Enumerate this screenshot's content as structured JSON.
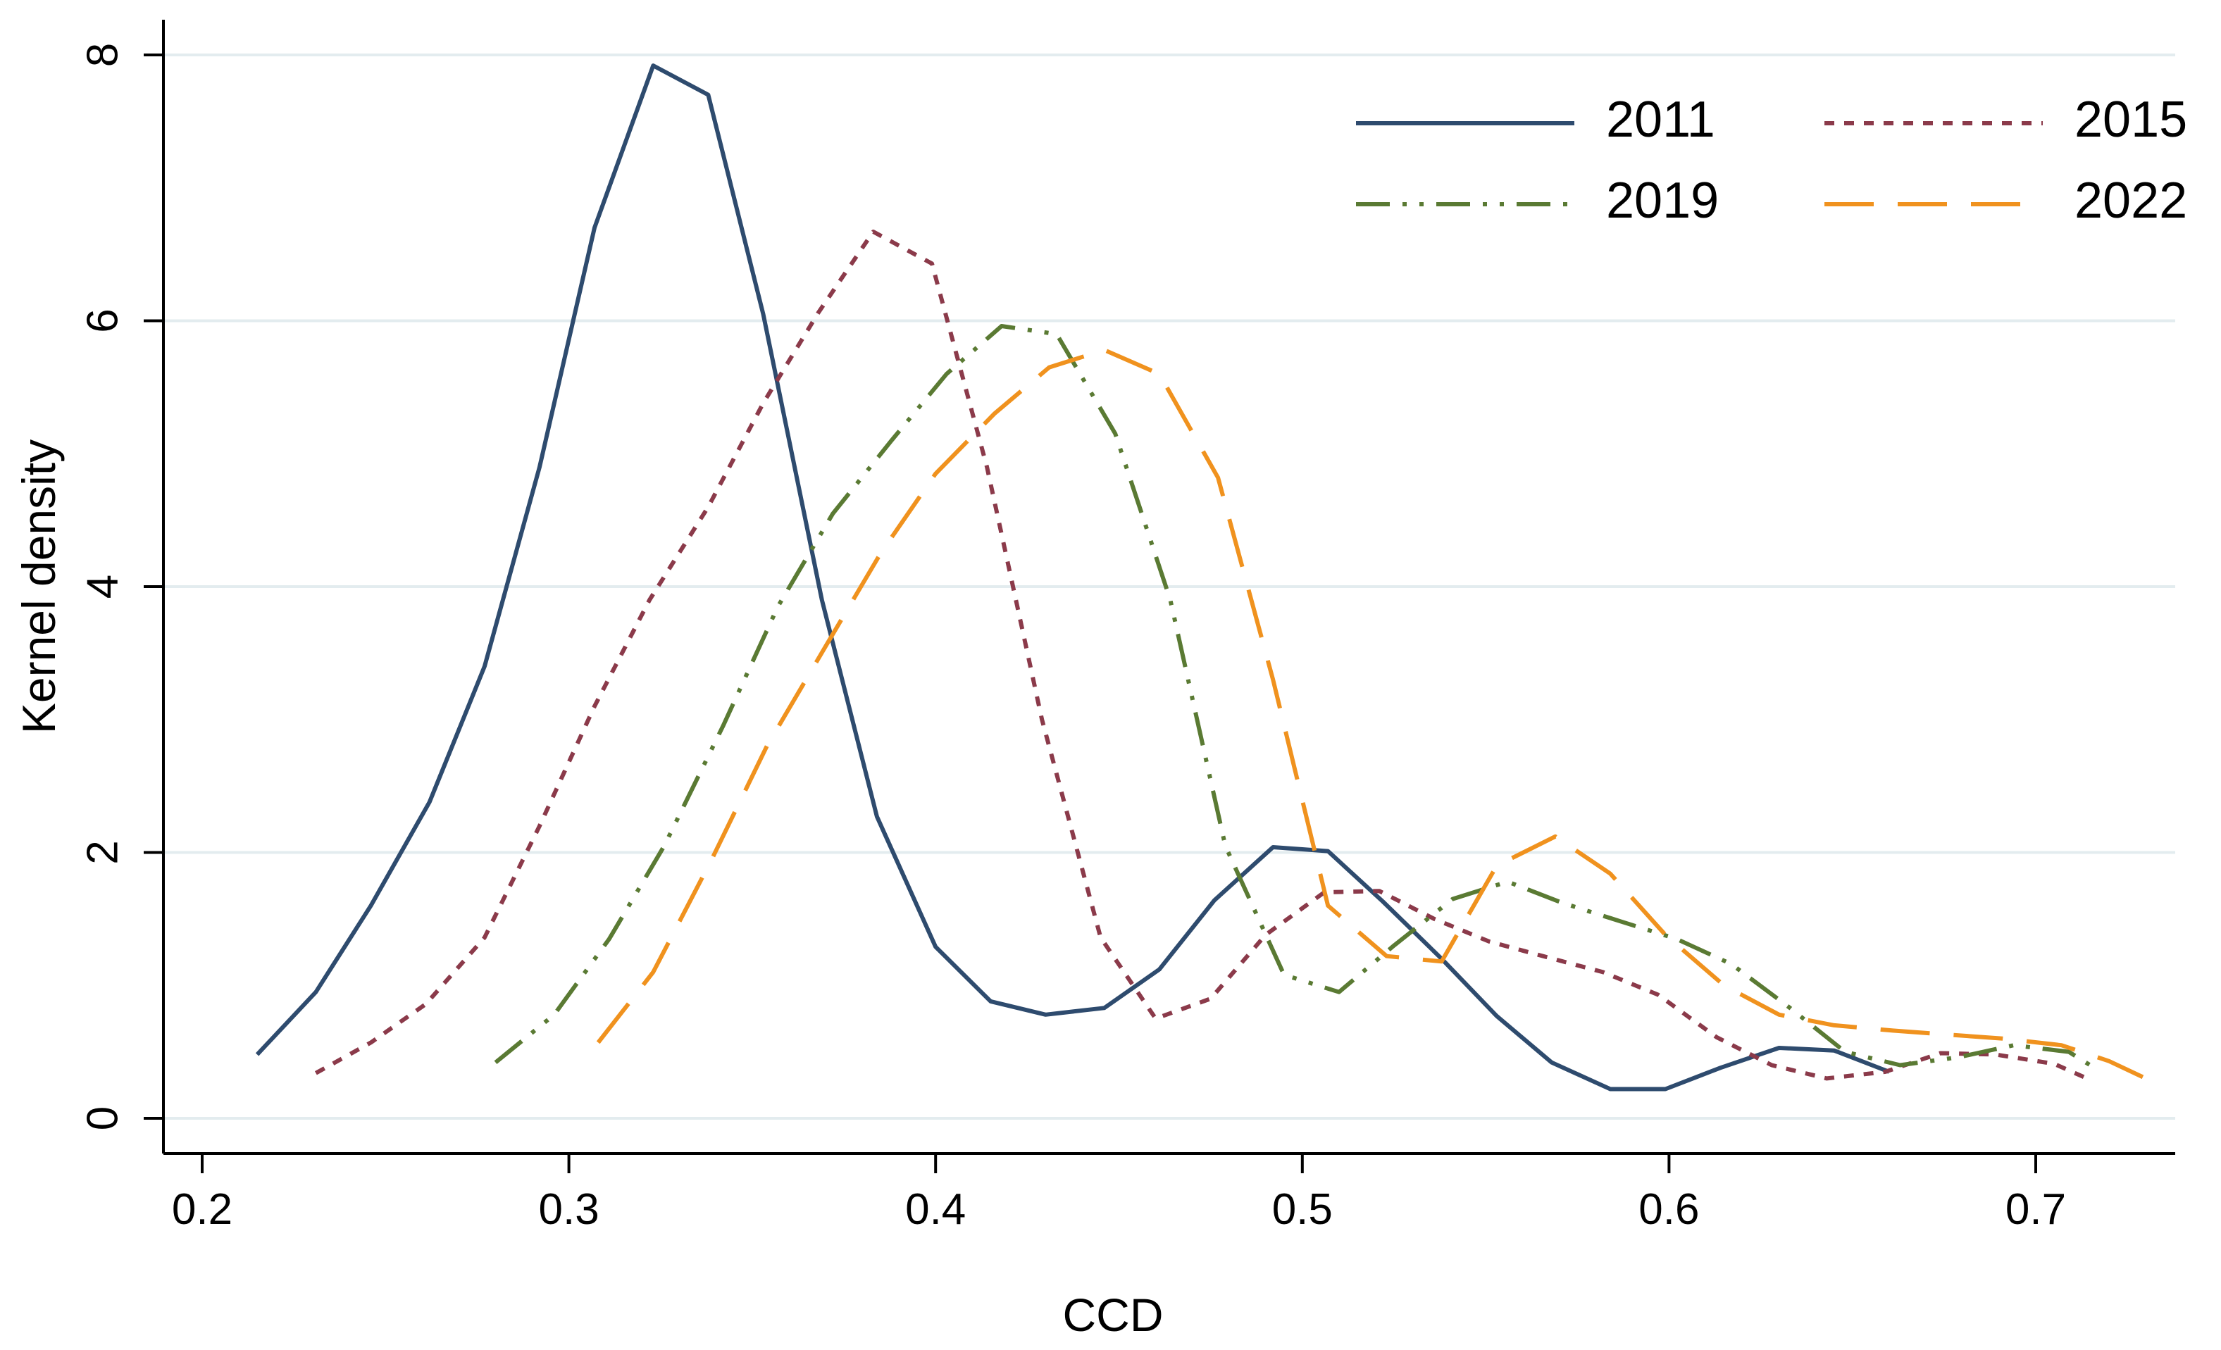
{
  "chart_data": {
    "type": "line",
    "title": "",
    "xlabel": "CCD",
    "ylabel": "Kernel density",
    "xlim": [
      0.2,
      0.73
    ],
    "ylim": [
      0,
      8
    ],
    "xticks": [
      0.2,
      0.3,
      0.4,
      0.5,
      0.6,
      0.7
    ],
    "xtick_labels": [
      "0.2",
      "0.3",
      "0.4",
      "0.5",
      "0.6",
      "0.7"
    ],
    "yticks": [
      0,
      2,
      4,
      6,
      8
    ],
    "ytick_labels": [
      "0",
      "2",
      "4",
      "6",
      "8"
    ],
    "grid": "horizontal",
    "legend_position": "top-right",
    "series": [
      {
        "name": "2011",
        "color": "#2e4b6e",
        "dash": "solid",
        "points": [
          [
            0.215,
            0.48
          ],
          [
            0.231,
            0.95
          ],
          [
            0.246,
            1.6
          ],
          [
            0.262,
            2.38
          ],
          [
            0.277,
            3.4
          ],
          [
            0.292,
            4.9
          ],
          [
            0.307,
            6.7
          ],
          [
            0.323,
            7.92
          ],
          [
            0.338,
            7.7
          ],
          [
            0.353,
            6.05
          ],
          [
            0.369,
            3.9
          ],
          [
            0.384,
            2.27
          ],
          [
            0.4,
            1.29
          ],
          [
            0.415,
            0.88
          ],
          [
            0.43,
            0.78
          ],
          [
            0.446,
            0.83
          ],
          [
            0.461,
            1.12
          ],
          [
            0.476,
            1.64
          ],
          [
            0.492,
            2.04
          ],
          [
            0.507,
            2.01
          ],
          [
            0.522,
            1.63
          ],
          [
            0.538,
            1.2
          ],
          [
            0.553,
            0.77
          ],
          [
            0.568,
            0.42
          ],
          [
            0.584,
            0.22
          ],
          [
            0.599,
            0.22
          ],
          [
            0.614,
            0.38
          ],
          [
            0.63,
            0.53
          ],
          [
            0.645,
            0.51
          ],
          [
            0.66,
            0.35
          ]
        ]
      },
      {
        "name": "2015",
        "color": "#8b3a4a",
        "dash": "short-dash",
        "points": [
          [
            0.231,
            0.34
          ],
          [
            0.246,
            0.57
          ],
          [
            0.261,
            0.86
          ],
          [
            0.277,
            1.36
          ],
          [
            0.292,
            2.2
          ],
          [
            0.307,
            3.1
          ],
          [
            0.322,
            3.9
          ],
          [
            0.338,
            4.6
          ],
          [
            0.353,
            5.38
          ],
          [
            0.368,
            6.06
          ],
          [
            0.383,
            6.67
          ],
          [
            0.399,
            6.43
          ],
          [
            0.414,
            4.9
          ],
          [
            0.429,
            3.0
          ],
          [
            0.445,
            1.36
          ],
          [
            0.46,
            0.75
          ],
          [
            0.475,
            0.9
          ],
          [
            0.49,
            1.38
          ],
          [
            0.506,
            1.7
          ],
          [
            0.521,
            1.71
          ],
          [
            0.536,
            1.5
          ],
          [
            0.551,
            1.33
          ],
          [
            0.567,
            1.21
          ],
          [
            0.582,
            1.1
          ],
          [
            0.597,
            0.93
          ],
          [
            0.613,
            0.61
          ],
          [
            0.628,
            0.4
          ],
          [
            0.643,
            0.3
          ],
          [
            0.659,
            0.35
          ],
          [
            0.674,
            0.49
          ],
          [
            0.689,
            0.48
          ],
          [
            0.705,
            0.41
          ],
          [
            0.714,
            0.3
          ]
        ]
      },
      {
        "name": "2019",
        "color": "#5a7a33",
        "dash": "dash-dot-dot",
        "points": [
          [
            0.28,
            0.42
          ],
          [
            0.296,
            0.78
          ],
          [
            0.311,
            1.35
          ],
          [
            0.326,
            2.05
          ],
          [
            0.342,
            2.95
          ],
          [
            0.357,
            3.85
          ],
          [
            0.372,
            4.55
          ],
          [
            0.388,
            5.1
          ],
          [
            0.403,
            5.6
          ],
          [
            0.418,
            5.96
          ],
          [
            0.433,
            5.9
          ],
          [
            0.449,
            5.15
          ],
          [
            0.464,
            3.9
          ],
          [
            0.479,
            2.05
          ],
          [
            0.495,
            1.08
          ],
          [
            0.51,
            0.95
          ],
          [
            0.525,
            1.3
          ],
          [
            0.541,
            1.65
          ],
          [
            0.556,
            1.78
          ],
          [
            0.571,
            1.62
          ],
          [
            0.587,
            1.48
          ],
          [
            0.602,
            1.35
          ],
          [
            0.617,
            1.16
          ],
          [
            0.633,
            0.83
          ],
          [
            0.648,
            0.5
          ],
          [
            0.663,
            0.4
          ],
          [
            0.679,
            0.46
          ],
          [
            0.694,
            0.55
          ],
          [
            0.709,
            0.5
          ],
          [
            0.716,
            0.38
          ]
        ]
      },
      {
        "name": "2022",
        "color": "#f0921e",
        "dash": "long-dash",
        "points": [
          [
            0.308,
            0.57
          ],
          [
            0.323,
            1.1
          ],
          [
            0.339,
            1.95
          ],
          [
            0.354,
            2.8
          ],
          [
            0.37,
            3.55
          ],
          [
            0.385,
            4.25
          ],
          [
            0.4,
            4.85
          ],
          [
            0.416,
            5.3
          ],
          [
            0.431,
            5.65
          ],
          [
            0.446,
            5.78
          ],
          [
            0.461,
            5.6
          ],
          [
            0.477,
            4.82
          ],
          [
            0.492,
            3.3
          ],
          [
            0.507,
            1.6
          ],
          [
            0.523,
            1.22
          ],
          [
            0.538,
            1.18
          ],
          [
            0.553,
            1.9
          ],
          [
            0.569,
            2.12
          ],
          [
            0.584,
            1.84
          ],
          [
            0.599,
            1.38
          ],
          [
            0.615,
            1.0
          ],
          [
            0.63,
            0.78
          ],
          [
            0.645,
            0.7
          ],
          [
            0.661,
            0.66
          ],
          [
            0.676,
            0.63
          ],
          [
            0.691,
            0.6
          ],
          [
            0.707,
            0.55
          ],
          [
            0.72,
            0.43
          ],
          [
            0.73,
            0.3
          ]
        ]
      }
    ]
  }
}
